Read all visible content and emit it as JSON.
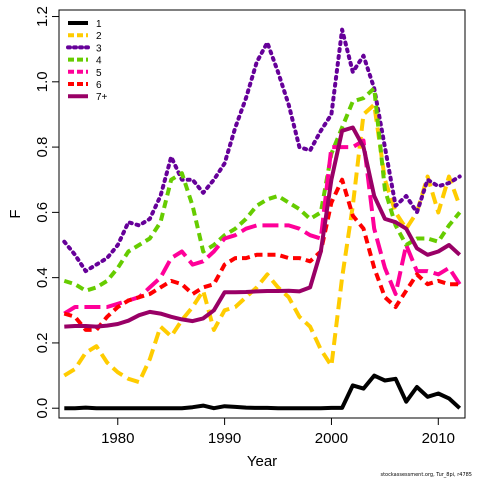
{
  "chart_data": {
    "type": "line",
    "xlabel": "Year",
    "ylabel": "F",
    "xlim": [
      1974.5,
      2012.5
    ],
    "ylim": [
      -0.03,
      1.22
    ],
    "x_ticks": [
      1980,
      1990,
      2000,
      2010
    ],
    "y_ticks": [
      0.0,
      0.2,
      0.4,
      0.6,
      0.8,
      1.0,
      1.2
    ],
    "x_tick_labels": [
      "1980",
      "1990",
      "2000",
      "2010"
    ],
    "y_tick_labels": [
      "0.0",
      "0.2",
      "0.4",
      "0.6",
      "0.8",
      "1.0",
      "1.2"
    ],
    "legend_position": "top-left",
    "grid": false,
    "x": [
      1975,
      1976,
      1977,
      1978,
      1979,
      1980,
      1981,
      1982,
      1983,
      1984,
      1985,
      1986,
      1987,
      1988,
      1989,
      1990,
      1991,
      1992,
      1993,
      1994,
      1995,
      1996,
      1997,
      1998,
      1999,
      2000,
      2001,
      2002,
      2003,
      2004,
      2005,
      2006,
      2007,
      2008,
      2009,
      2010,
      2011,
      2012
    ],
    "series": [
      {
        "name": "1",
        "color": "#000000",
        "dash": "solid",
        "values": [
          0.0,
          0.0,
          0.002,
          0.0,
          0.0,
          0.0,
          0.0,
          0.0,
          0.0,
          0.0,
          0.0,
          0.0,
          0.003,
          0.008,
          0.0,
          0.006,
          0.004,
          0.002,
          0.001,
          0.001,
          0.0,
          0.0,
          0.0,
          0.0,
          0.0,
          0.001,
          0.001,
          0.07,
          0.06,
          0.1,
          0.085,
          0.09,
          0.02,
          0.065,
          0.035,
          0.045,
          0.03,
          0.0
        ]
      },
      {
        "name": "2",
        "color": "#FFCC00",
        "dash": "long",
        "values": [
          0.1,
          0.12,
          0.17,
          0.19,
          0.14,
          0.11,
          0.09,
          0.08,
          0.15,
          0.25,
          0.22,
          0.27,
          0.31,
          0.36,
          0.24,
          0.3,
          0.31,
          0.34,
          0.37,
          0.41,
          0.37,
          0.34,
          0.28,
          0.25,
          0.18,
          0.13,
          0.4,
          0.62,
          0.9,
          0.93,
          0.7,
          0.6,
          0.55,
          0.6,
          0.71,
          0.6,
          0.71,
          0.62
        ]
      },
      {
        "name": "3",
        "color": "#660099",
        "dash": "dot",
        "values": [
          0.51,
          0.47,
          0.42,
          0.44,
          0.46,
          0.5,
          0.57,
          0.56,
          0.58,
          0.65,
          0.77,
          0.7,
          0.7,
          0.66,
          0.7,
          0.75,
          0.86,
          0.95,
          1.06,
          1.12,
          1.03,
          0.93,
          0.8,
          0.79,
          0.85,
          0.9,
          1.16,
          1.03,
          1.08,
          0.98,
          0.8,
          0.62,
          0.65,
          0.6,
          0.7,
          0.68,
          0.69,
          0.71
        ]
      },
      {
        "name": "4",
        "color": "#66CC00",
        "dash": "dash",
        "values": [
          0.39,
          0.38,
          0.36,
          0.37,
          0.39,
          0.43,
          0.48,
          0.5,
          0.52,
          0.57,
          0.7,
          0.72,
          0.62,
          0.48,
          0.5,
          0.53,
          0.55,
          0.58,
          0.62,
          0.64,
          0.65,
          0.63,
          0.61,
          0.58,
          0.6,
          0.78,
          0.86,
          0.94,
          0.95,
          0.98,
          0.67,
          0.56,
          0.5,
          0.52,
          0.52,
          0.51,
          0.56,
          0.6
        ]
      },
      {
        "name": "5",
        "color": "#FF0099",
        "dash": "longdash",
        "values": [
          0.29,
          0.31,
          0.31,
          0.31,
          0.31,
          0.32,
          0.33,
          0.34,
          0.37,
          0.4,
          0.46,
          0.48,
          0.44,
          0.45,
          0.48,
          0.52,
          0.53,
          0.55,
          0.56,
          0.56,
          0.56,
          0.56,
          0.55,
          0.53,
          0.52,
          0.8,
          0.8,
          0.8,
          0.82,
          0.55,
          0.43,
          0.35,
          0.5,
          0.42,
          0.42,
          0.41,
          0.43,
          0.38
        ]
      },
      {
        "name": "6",
        "color": "#FF0000",
        "dash": "dash",
        "values": [
          0.29,
          0.28,
          0.24,
          0.24,
          0.28,
          0.31,
          0.33,
          0.34,
          0.35,
          0.37,
          0.39,
          0.38,
          0.35,
          0.37,
          0.38,
          0.44,
          0.46,
          0.46,
          0.47,
          0.47,
          0.47,
          0.46,
          0.46,
          0.45,
          0.48,
          0.63,
          0.7,
          0.59,
          0.55,
          0.43,
          0.34,
          0.31,
          0.36,
          0.41,
          0.38,
          0.39,
          0.38,
          0.38
        ]
      },
      {
        "name": "7+",
        "color": "#990066",
        "dash": "solid",
        "values": [
          0.25,
          0.252,
          0.252,
          0.25,
          0.253,
          0.258,
          0.268,
          0.285,
          0.295,
          0.29,
          0.28,
          0.272,
          0.267,
          0.275,
          0.3,
          0.355,
          0.355,
          0.356,
          0.358,
          0.359,
          0.359,
          0.36,
          0.358,
          0.37,
          0.48,
          0.7,
          0.85,
          0.86,
          0.8,
          0.65,
          0.58,
          0.57,
          0.55,
          0.49,
          0.47,
          0.48,
          0.5,
          0.47
        ]
      }
    ]
  },
  "credit": "stockassessment.org, Tur_8pi, r4785"
}
